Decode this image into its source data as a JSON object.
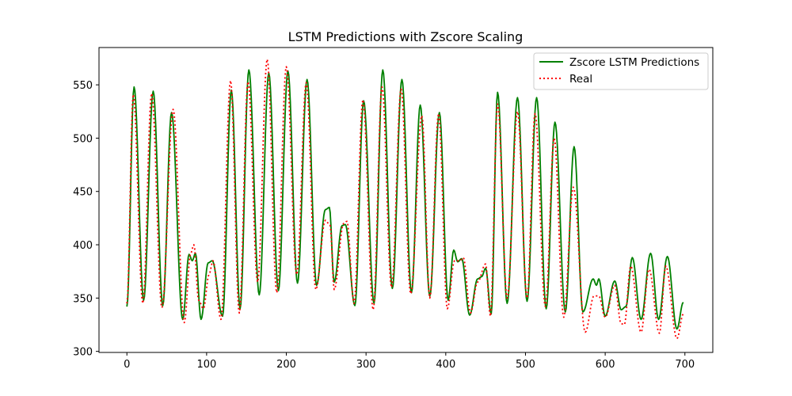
{
  "chart_data": {
    "type": "line",
    "title": "LSTM Predictions with Zscore Scaling",
    "xlabel": "",
    "ylabel": "",
    "xlim": [
      -35,
      735
    ],
    "ylim": [
      299,
      585
    ],
    "xticks": [
      0,
      100,
      200,
      300,
      400,
      500,
      600,
      700
    ],
    "yticks": [
      300,
      350,
      400,
      450,
      500,
      550
    ],
    "grid": false,
    "legend_position": "top-right",
    "series": [
      {
        "name": "Zscore LSTM Predictions",
        "color": "#008000",
        "style": "solid",
        "peaks": [
          [
            0,
            342
          ],
          [
            9,
            548
          ],
          [
            21,
            348
          ],
          [
            33,
            544
          ],
          [
            45,
            343
          ],
          [
            56,
            524
          ],
          [
            70,
            330
          ],
          [
            78,
            391
          ],
          [
            82,
            385
          ],
          [
            86,
            392
          ],
          [
            93,
            330
          ],
          [
            102,
            383
          ],
          [
            107,
            385
          ],
          [
            120,
            333
          ],
          [
            131,
            545
          ],
          [
            142,
            340
          ],
          [
            153,
            564
          ],
          [
            166,
            353
          ],
          [
            178,
            561
          ],
          [
            190,
            357
          ],
          [
            202,
            563
          ],
          [
            214,
            364
          ],
          [
            226,
            555
          ],
          [
            238,
            362
          ],
          [
            249,
            433
          ],
          [
            254,
            435
          ],
          [
            260,
            365
          ],
          [
            270,
            418
          ],
          [
            274,
            419
          ],
          [
            286,
            343
          ],
          [
            297,
            535
          ],
          [
            310,
            345
          ],
          [
            321,
            564
          ],
          [
            333,
            359
          ],
          [
            345,
            555
          ],
          [
            357,
            355
          ],
          [
            368,
            531
          ],
          [
            380,
            352
          ],
          [
            392,
            524
          ],
          [
            403,
            348
          ],
          [
            410,
            395
          ],
          [
            415,
            384
          ],
          [
            420,
            387
          ],
          [
            430,
            334
          ],
          [
            440,
            368
          ],
          [
            445,
            370
          ],
          [
            450,
            378
          ],
          [
            457,
            335
          ],
          [
            465,
            543
          ],
          [
            477,
            345
          ],
          [
            490,
            538
          ],
          [
            502,
            347
          ],
          [
            514,
            538
          ],
          [
            526,
            340
          ],
          [
            537,
            515
          ],
          [
            550,
            337
          ],
          [
            561,
            492
          ],
          [
            572,
            337
          ],
          [
            585,
            368
          ],
          [
            589,
            362
          ],
          [
            592,
            368
          ],
          [
            600,
            333
          ],
          [
            612,
            366
          ],
          [
            620,
            339
          ],
          [
            626,
            342
          ],
          [
            634,
            388
          ],
          [
            645,
            330
          ],
          [
            657,
            392
          ],
          [
            667,
            330
          ],
          [
            678,
            389
          ],
          [
            690,
            321
          ],
          [
            698,
            346
          ]
        ]
      },
      {
        "name": "Real",
        "color": "#ff0000",
        "style": "dotted",
        "peaks": [
          [
            0,
            345
          ],
          [
            8,
            541
          ],
          [
            20,
            345
          ],
          [
            31,
            542
          ],
          [
            44,
            341
          ],
          [
            58,
            527
          ],
          [
            72,
            327
          ],
          [
            80,
            392
          ],
          [
            84,
            400
          ],
          [
            90,
            348
          ],
          [
            96,
            340
          ],
          [
            103,
            372
          ],
          [
            108,
            385
          ],
          [
            118,
            330
          ],
          [
            130,
            554
          ],
          [
            141,
            336
          ],
          [
            152,
            553
          ],
          [
            164,
            365
          ],
          [
            176,
            574
          ],
          [
            188,
            355
          ],
          [
            200,
            567
          ],
          [
            213,
            372
          ],
          [
            225,
            552
          ],
          [
            237,
            358
          ],
          [
            249,
            423
          ],
          [
            255,
            418
          ],
          [
            260,
            358
          ],
          [
            272,
            420
          ],
          [
            276,
            422
          ],
          [
            285,
            345
          ],
          [
            296,
            536
          ],
          [
            309,
            339
          ],
          [
            320,
            548
          ],
          [
            332,
            360
          ],
          [
            344,
            546
          ],
          [
            356,
            354
          ],
          [
            370,
            521
          ],
          [
            380,
            350
          ],
          [
            391,
            523
          ],
          [
            402,
            340
          ],
          [
            411,
            385
          ],
          [
            418,
            385
          ],
          [
            422,
            388
          ],
          [
            431,
            336
          ],
          [
            440,
            365
          ],
          [
            450,
            382
          ],
          [
            456,
            333
          ],
          [
            465,
            532
          ],
          [
            477,
            350
          ],
          [
            490,
            525
          ],
          [
            502,
            350
          ],
          [
            512,
            523
          ],
          [
            525,
            342
          ],
          [
            536,
            500
          ],
          [
            548,
            332
          ],
          [
            560,
            454
          ],
          [
            575,
            318
          ],
          [
            586,
            352
          ],
          [
            592,
            352
          ],
          [
            600,
            332
          ],
          [
            612,
            362
          ],
          [
            620,
            326
          ],
          [
            624,
            325
          ],
          [
            632,
            380
          ],
          [
            645,
            318
          ],
          [
            655,
            377
          ],
          [
            668,
            317
          ],
          [
            676,
            380
          ],
          [
            690,
            312
          ],
          [
            698,
            335
          ]
        ]
      }
    ]
  }
}
